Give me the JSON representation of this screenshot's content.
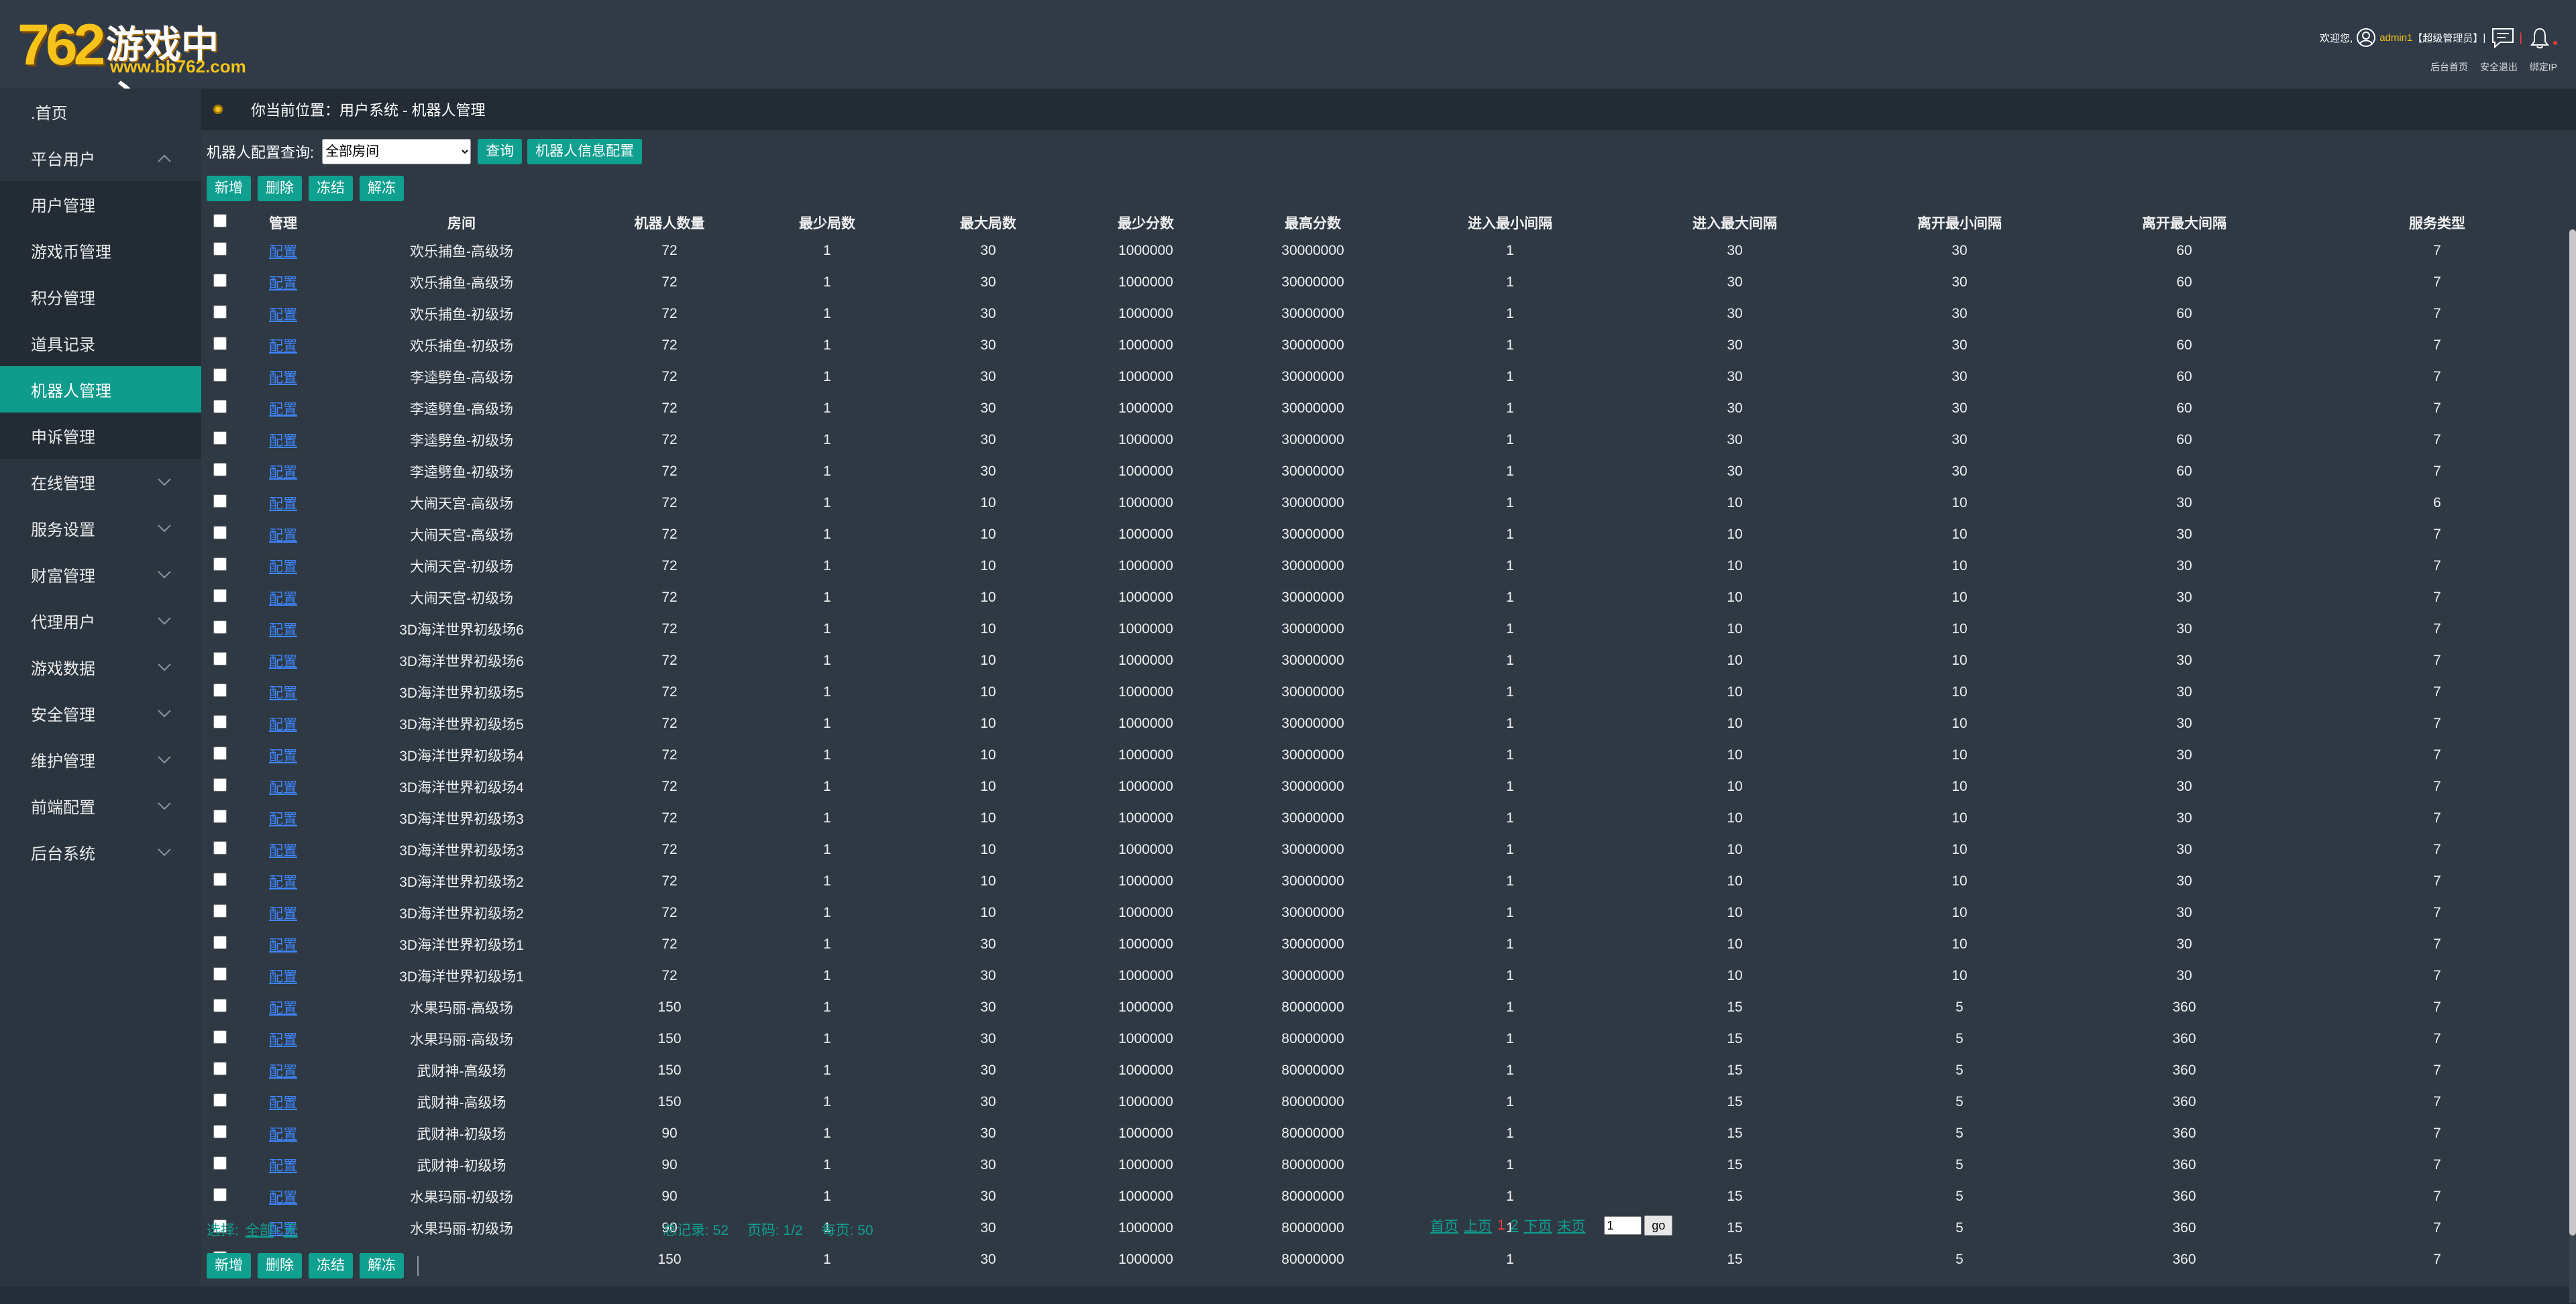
{
  "logo": {
    "number": "762",
    "text": "游戏中心",
    "url": "www.bb762.com"
  },
  "user": {
    "welcome": "欢迎您,",
    "name": "admin1",
    "role": "【超级管理员】",
    "separator1": "|",
    "separator2": "|"
  },
  "toplinks": [
    "后台首页",
    "安全退出",
    "绑定IP"
  ],
  "sidebar": [
    {
      "label": ".首页",
      "type": "top",
      "chevron": false
    },
    {
      "label": "平台用户",
      "type": "group-open",
      "chevron": "up"
    },
    {
      "label": "用户管理",
      "type": "sub"
    },
    {
      "label": "游戏币管理",
      "type": "sub"
    },
    {
      "label": "积分管理",
      "type": "sub"
    },
    {
      "label": "道具记录",
      "type": "sub"
    },
    {
      "label": "机器人管理",
      "type": "active"
    },
    {
      "label": "申诉管理",
      "type": "sub"
    },
    {
      "label": "在线管理",
      "type": "group",
      "chevron": "down"
    },
    {
      "label": "服务设置",
      "type": "group",
      "chevron": "down"
    },
    {
      "label": "财富管理",
      "type": "group",
      "chevron": "down"
    },
    {
      "label": "代理用户",
      "type": "group",
      "chevron": "down"
    },
    {
      "label": "游戏数据",
      "type": "group",
      "chevron": "down"
    },
    {
      "label": "安全管理",
      "type": "group",
      "chevron": "down"
    },
    {
      "label": "维护管理",
      "type": "group",
      "chevron": "down"
    },
    {
      "label": "前端配置",
      "type": "group",
      "chevron": "down"
    },
    {
      "label": "后台系统",
      "type": "group",
      "chevron": "down"
    }
  ],
  "breadcrumb": "你当前位置：用户系统 - 机器人管理",
  "search": {
    "label": "机器人配置查询:",
    "selected": "全部房间",
    "query_btn": "查询",
    "info_btn": "机器人信息配置"
  },
  "actions": {
    "add": "新增",
    "delete": "删除",
    "freeze": "冻结",
    "unfreeze": "解冻"
  },
  "table": {
    "columns": [
      "管理",
      "房间",
      "机器人数量",
      "最少局数",
      "最大局数",
      "最少分数",
      "最高分数",
      "进入最小间隔",
      "进入最大间隔",
      "离开最小间隔",
      "离开最大间隔",
      "服务类型"
    ],
    "link_text": "配置",
    "rows": [
      [
        "欢乐捕鱼-高级场",
        "72",
        "1",
        "30",
        "1000000",
        "30000000",
        "1",
        "30",
        "30",
        "60",
        "7"
      ],
      [
        "欢乐捕鱼-高级场",
        "72",
        "1",
        "30",
        "1000000",
        "30000000",
        "1",
        "30",
        "30",
        "60",
        "7"
      ],
      [
        "欢乐捕鱼-初级场",
        "72",
        "1",
        "30",
        "1000000",
        "30000000",
        "1",
        "30",
        "30",
        "60",
        "7"
      ],
      [
        "欢乐捕鱼-初级场",
        "72",
        "1",
        "30",
        "1000000",
        "30000000",
        "1",
        "30",
        "30",
        "60",
        "7"
      ],
      [
        "李逵劈鱼-高级场",
        "72",
        "1",
        "30",
        "1000000",
        "30000000",
        "1",
        "30",
        "30",
        "60",
        "7"
      ],
      [
        "李逵劈鱼-高级场",
        "72",
        "1",
        "30",
        "1000000",
        "30000000",
        "1",
        "30",
        "30",
        "60",
        "7"
      ],
      [
        "李逵劈鱼-初级场",
        "72",
        "1",
        "30",
        "1000000",
        "30000000",
        "1",
        "30",
        "30",
        "60",
        "7"
      ],
      [
        "李逵劈鱼-初级场",
        "72",
        "1",
        "30",
        "1000000",
        "30000000",
        "1",
        "30",
        "30",
        "60",
        "7"
      ],
      [
        "大闹天宫-高级场",
        "72",
        "1",
        "10",
        "1000000",
        "30000000",
        "1",
        "10",
        "10",
        "30",
        "6"
      ],
      [
        "大闹天宫-高级场",
        "72",
        "1",
        "10",
        "1000000",
        "30000000",
        "1",
        "10",
        "10",
        "30",
        "7"
      ],
      [
        "大闹天宫-初级场",
        "72",
        "1",
        "10",
        "1000000",
        "30000000",
        "1",
        "10",
        "10",
        "30",
        "7"
      ],
      [
        "大闹天宫-初级场",
        "72",
        "1",
        "10",
        "1000000",
        "30000000",
        "1",
        "10",
        "10",
        "30",
        "7"
      ],
      [
        "3D海洋世界初级场6",
        "72",
        "1",
        "10",
        "1000000",
        "30000000",
        "1",
        "10",
        "10",
        "30",
        "7"
      ],
      [
        "3D海洋世界初级场6",
        "72",
        "1",
        "10",
        "1000000",
        "30000000",
        "1",
        "10",
        "10",
        "30",
        "7"
      ],
      [
        "3D海洋世界初级场5",
        "72",
        "1",
        "10",
        "1000000",
        "30000000",
        "1",
        "10",
        "10",
        "30",
        "7"
      ],
      [
        "3D海洋世界初级场5",
        "72",
        "1",
        "10",
        "1000000",
        "30000000",
        "1",
        "10",
        "10",
        "30",
        "7"
      ],
      [
        "3D海洋世界初级场4",
        "72",
        "1",
        "10",
        "1000000",
        "30000000",
        "1",
        "10",
        "10",
        "30",
        "7"
      ],
      [
        "3D海洋世界初级场4",
        "72",
        "1",
        "10",
        "1000000",
        "30000000",
        "1",
        "10",
        "10",
        "30",
        "7"
      ],
      [
        "3D海洋世界初级场3",
        "72",
        "1",
        "10",
        "1000000",
        "30000000",
        "1",
        "10",
        "10",
        "30",
        "7"
      ],
      [
        "3D海洋世界初级场3",
        "72",
        "1",
        "10",
        "1000000",
        "30000000",
        "1",
        "10",
        "10",
        "30",
        "7"
      ],
      [
        "3D海洋世界初级场2",
        "72",
        "1",
        "10",
        "1000000",
        "30000000",
        "1",
        "10",
        "10",
        "30",
        "7"
      ],
      [
        "3D海洋世界初级场2",
        "72",
        "1",
        "10",
        "1000000",
        "30000000",
        "1",
        "10",
        "10",
        "30",
        "7"
      ],
      [
        "3D海洋世界初级场1",
        "72",
        "1",
        "30",
        "1000000",
        "30000000",
        "1",
        "10",
        "10",
        "30",
        "7"
      ],
      [
        "3D海洋世界初级场1",
        "72",
        "1",
        "30",
        "1000000",
        "30000000",
        "1",
        "10",
        "10",
        "30",
        "7"
      ],
      [
        "水果玛丽-高级场",
        "150",
        "1",
        "30",
        "1000000",
        "80000000",
        "1",
        "15",
        "5",
        "360",
        "7"
      ],
      [
        "水果玛丽-高级场",
        "150",
        "1",
        "30",
        "1000000",
        "80000000",
        "1",
        "15",
        "5",
        "360",
        "7"
      ],
      [
        "武财神-高级场",
        "150",
        "1",
        "30",
        "1000000",
        "80000000",
        "1",
        "15",
        "5",
        "360",
        "7"
      ],
      [
        "武财神-高级场",
        "150",
        "1",
        "30",
        "1000000",
        "80000000",
        "1",
        "15",
        "5",
        "360",
        "7"
      ],
      [
        "武财神-初级场",
        "90",
        "1",
        "30",
        "1000000",
        "80000000",
        "1",
        "15",
        "5",
        "360",
        "7"
      ],
      [
        "武财神-初级场",
        "90",
        "1",
        "30",
        "1000000",
        "80000000",
        "1",
        "15",
        "5",
        "360",
        "7"
      ],
      [
        "水果玛丽-初级场",
        "90",
        "1",
        "30",
        "1000000",
        "80000000",
        "1",
        "15",
        "5",
        "360",
        "7"
      ],
      [
        "水果玛丽-初级场",
        "90",
        "1",
        "30",
        "1000000",
        "80000000",
        "1",
        "15",
        "5",
        "360",
        "7"
      ],
      [
        "",
        "150",
        "1",
        "30",
        "1000000",
        "80000000",
        "1",
        "15",
        "5",
        "360",
        "7"
      ]
    ]
  },
  "footer": {
    "select_label": "选择:",
    "select_all": "全部",
    "dash": "-",
    "select_none": "无",
    "total": "总记录: 52",
    "pages": "页码: 1/2",
    "per_page": "每页: 50",
    "first": "首页",
    "prev": "上页",
    "cur_page": "1",
    "page2": "2",
    "next": "下页",
    "last": "末页",
    "goto_value": "1",
    "go": "go"
  },
  "colors": {
    "accent": "#10a090",
    "active_nav": "#0f9c8d",
    "link": "#3f86ff",
    "highlight": "#f6c31a",
    "alert": "#ff3a3a"
  }
}
